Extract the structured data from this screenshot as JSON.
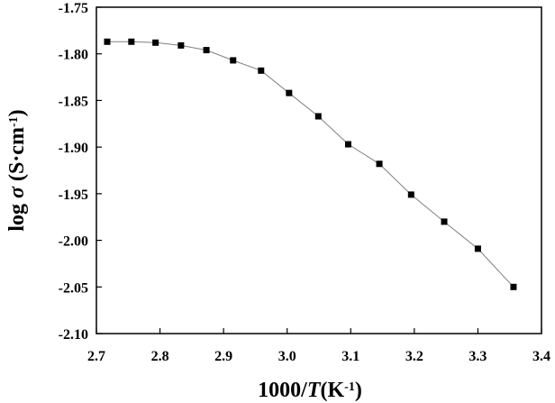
{
  "chart_data": {
    "type": "line",
    "xlim": [
      2.7,
      3.4
    ],
    "ylim": [
      -2.1,
      -1.75
    ],
    "x_ticks": [
      "2.7",
      "2.8",
      "2.9",
      "3.0",
      "3.1",
      "3.2",
      "3.3",
      "3.4"
    ],
    "y_ticks": [
      "-1.75",
      "-1.80",
      "-1.85",
      "-1.90",
      "-1.95",
      "-2.00",
      "-2.05",
      "-2.10"
    ],
    "xlabel": {
      "prefix": "1000/",
      "italic": "T",
      "unit": "(K",
      "sup": "-1",
      "suffix": ")"
    },
    "ylabel": {
      "prefix": "log ",
      "italic": "σ",
      "unit": " (S·cm",
      "sup": "-1",
      "suffix": ")"
    },
    "grid": false,
    "marker": "square",
    "line_color": "#808080",
    "marker_color": "#000000",
    "series": [
      {
        "x": [
          2.717,
          2.755,
          2.793,
          2.833,
          2.873,
          2.915,
          2.959,
          3.003,
          3.049,
          3.096,
          3.145,
          3.195,
          3.247,
          3.3,
          3.356
        ],
        "y": [
          -1.787,
          -1.787,
          -1.788,
          -1.791,
          -1.796,
          -1.807,
          -1.818,
          -1.842,
          -1.867,
          -1.897,
          -1.918,
          -1.951,
          -1.98,
          -2.009,
          -2.05
        ]
      }
    ]
  }
}
